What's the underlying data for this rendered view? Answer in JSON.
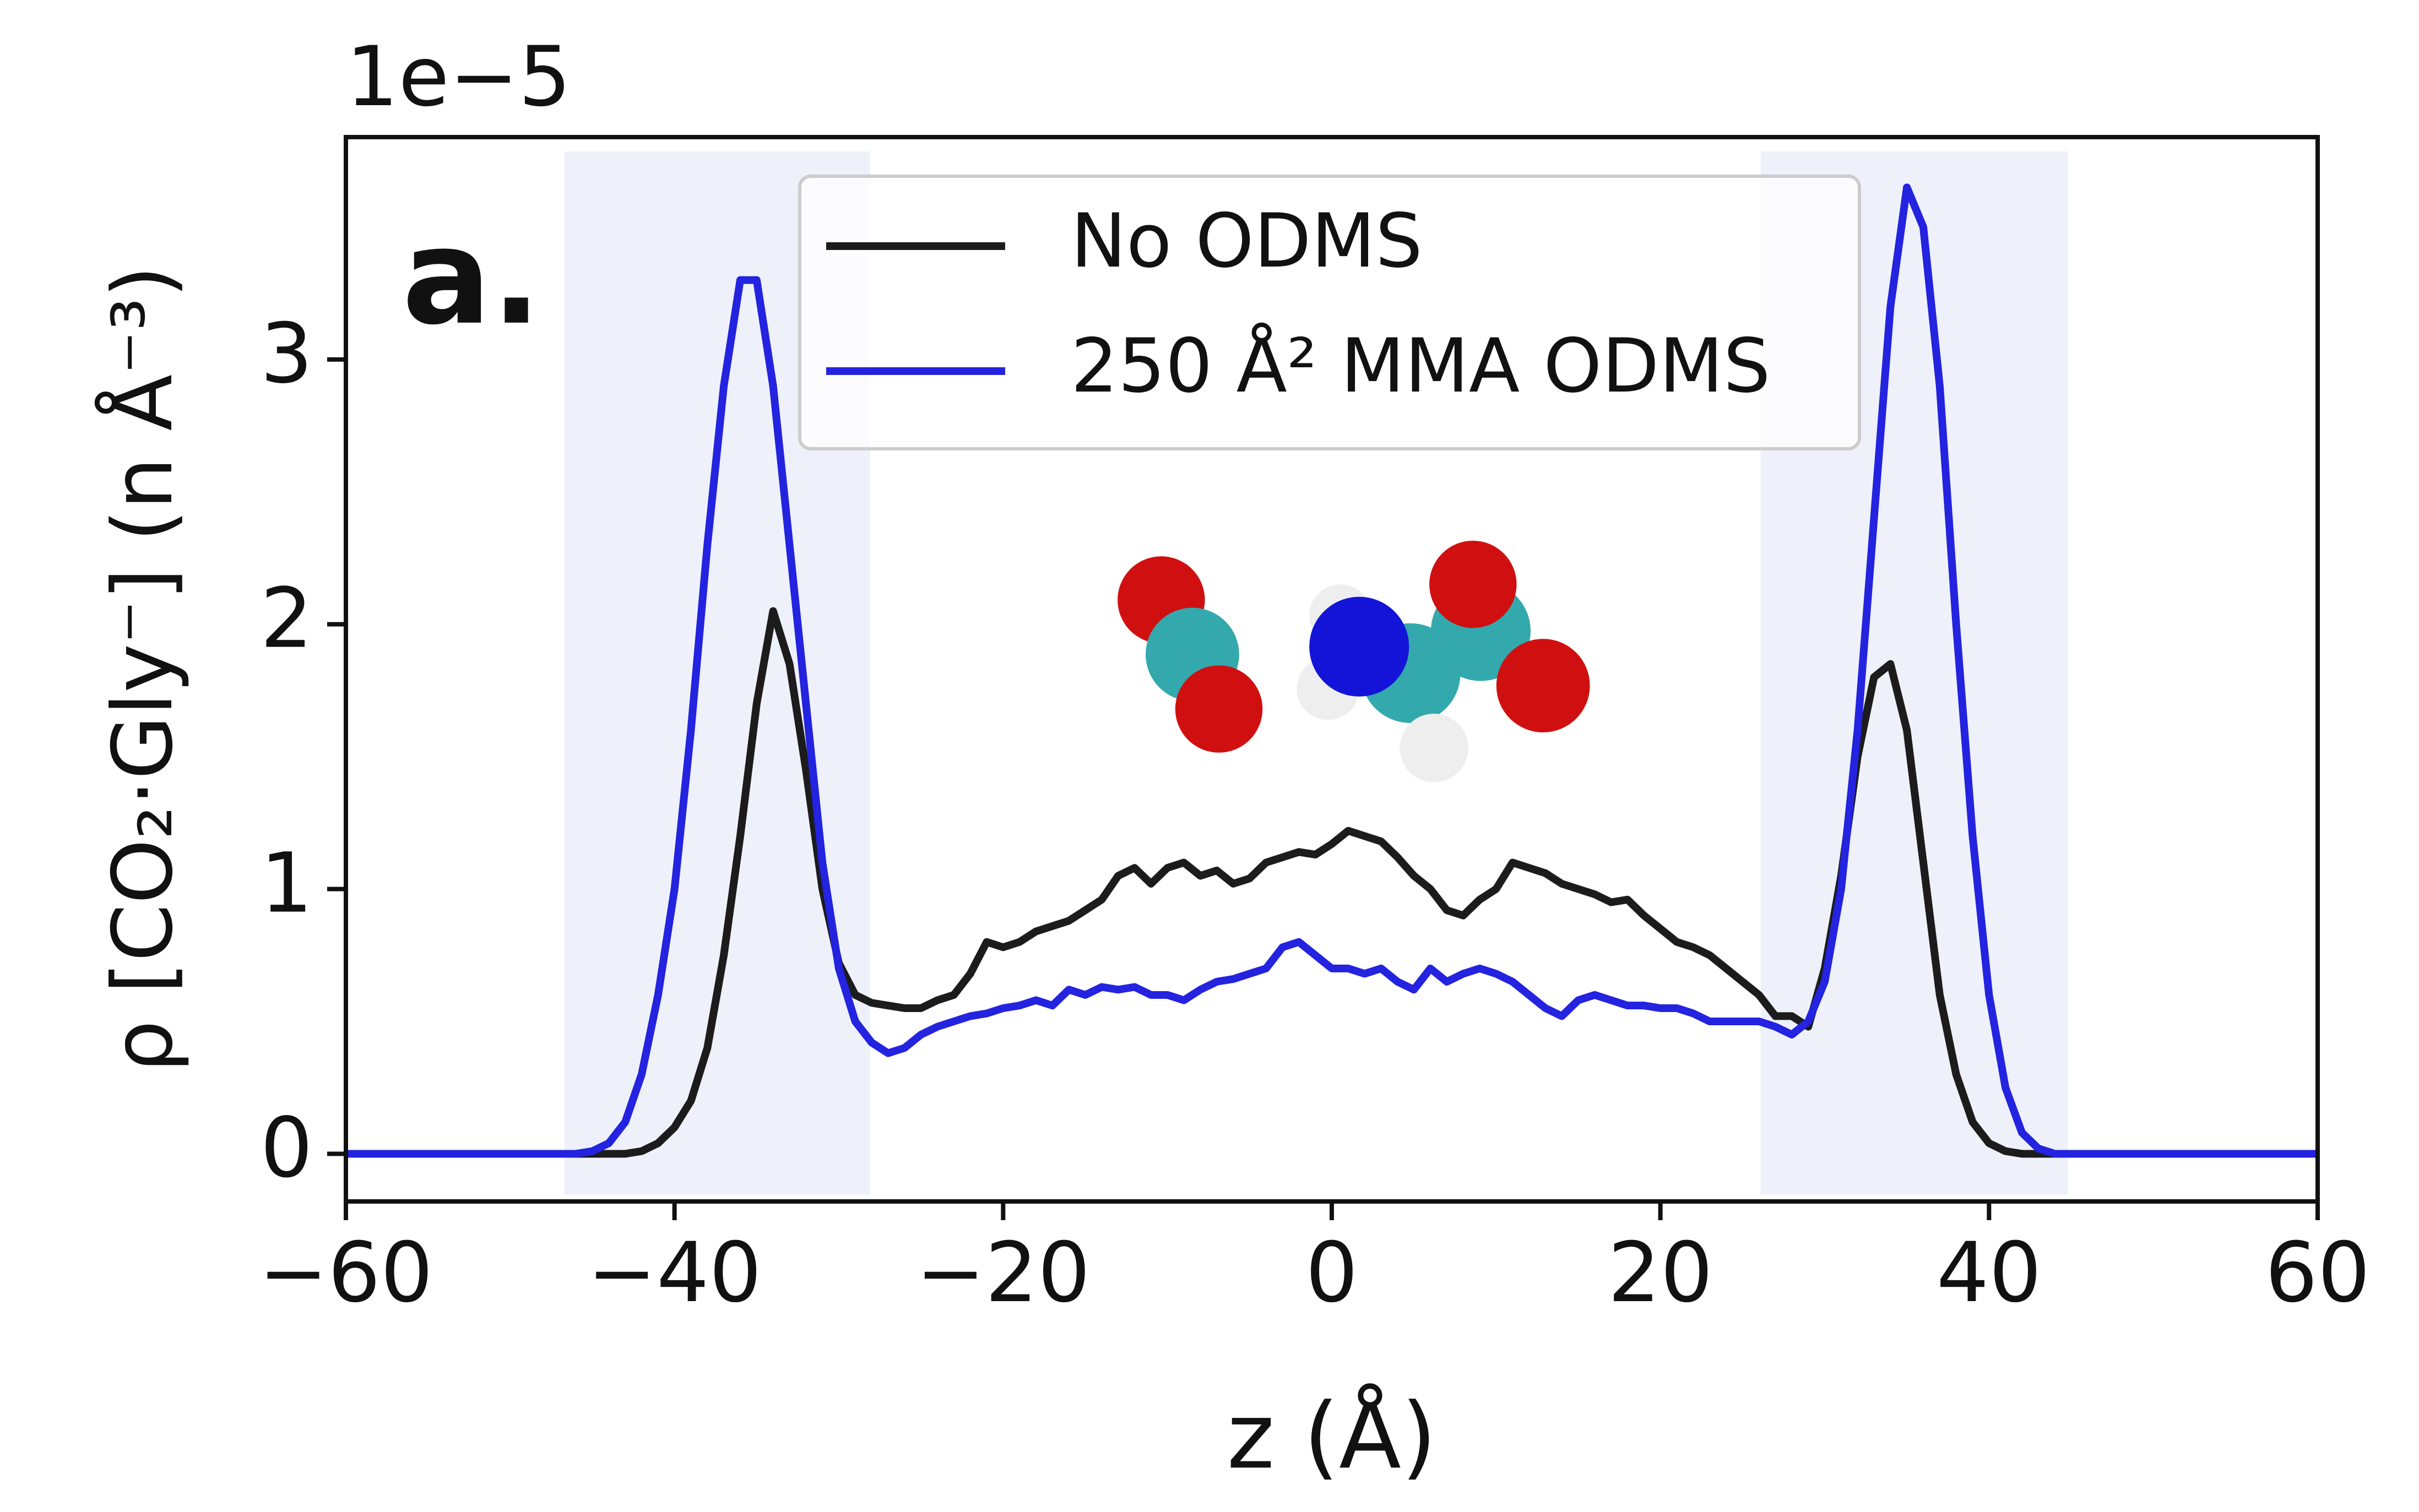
{
  "chart_data": {
    "type": "line",
    "offset_label": "1e−5",
    "panel_label": "a.",
    "x_label": "z (Å)",
    "y_label": "ρ [CO₂·Gly⁻] (n Å⁻³)",
    "x": [
      -60,
      -46,
      -45,
      -44,
      -43,
      -42,
      -41,
      -40,
      -39,
      -38,
      -37,
      -36,
      -35,
      -34,
      -33,
      -32,
      -31,
      -30,
      -29,
      -28,
      -27,
      -26,
      -25,
      -24,
      -23,
      -22,
      -21,
      -20,
      -19,
      -18,
      -17,
      -16,
      -15,
      -14,
      -13,
      -12,
      -11,
      -10,
      -9,
      -8,
      -7,
      -6,
      -5,
      -4,
      -3,
      -2,
      -1,
      0,
      1,
      2,
      3,
      4,
      5,
      6,
      7,
      8,
      9,
      10,
      11,
      12,
      13,
      14,
      15,
      16,
      17,
      18,
      19,
      20,
      21,
      22,
      23,
      24,
      25,
      26,
      27,
      28,
      29,
      30,
      31,
      32,
      33,
      34,
      35,
      36,
      37,
      38,
      39,
      40,
      41,
      42,
      43,
      44,
      45,
      46,
      60
    ],
    "series": [
      {
        "name": "No ODMS",
        "color": "#1c1c1c",
        "values": [
          0,
          0,
          0,
          0,
          0,
          0.01,
          0.04,
          0.1,
          0.2,
          0.4,
          0.75,
          1.2,
          1.7,
          2.05,
          1.85,
          1.45,
          1.0,
          0.72,
          0.6,
          0.57,
          0.56,
          0.55,
          0.55,
          0.58,
          0.6,
          0.68,
          0.8,
          0.78,
          0.8,
          0.84,
          0.86,
          0.88,
          0.92,
          0.96,
          1.05,
          1.08,
          1.02,
          1.08,
          1.1,
          1.05,
          1.07,
          1.02,
          1.04,
          1.1,
          1.12,
          1.14,
          1.13,
          1.17,
          1.22,
          1.2,
          1.18,
          1.12,
          1.05,
          1.0,
          0.92,
          0.9,
          0.96,
          1.0,
          1.1,
          1.08,
          1.06,
          1.02,
          1.0,
          0.98,
          0.95,
          0.96,
          0.9,
          0.85,
          0.8,
          0.78,
          0.75,
          0.7,
          0.65,
          0.6,
          0.52,
          0.52,
          0.48,
          0.7,
          1.05,
          1.5,
          1.8,
          1.85,
          1.6,
          1.1,
          0.6,
          0.3,
          0.12,
          0.04,
          0.01,
          0,
          0,
          0,
          0,
          0,
          0
        ]
      },
      {
        "name": "250 Å² MMA ODMS",
        "color": "#2323e0",
        "values": [
          0,
          0,
          0.01,
          0.04,
          0.12,
          0.3,
          0.6,
          1.0,
          1.6,
          2.3,
          2.9,
          3.3,
          3.3,
          2.9,
          2.3,
          1.7,
          1.1,
          0.7,
          0.5,
          0.42,
          0.38,
          0.4,
          0.45,
          0.48,
          0.5,
          0.52,
          0.53,
          0.55,
          0.56,
          0.58,
          0.56,
          0.62,
          0.6,
          0.63,
          0.62,
          0.63,
          0.6,
          0.6,
          0.58,
          0.62,
          0.65,
          0.66,
          0.68,
          0.7,
          0.78,
          0.8,
          0.75,
          0.7,
          0.7,
          0.68,
          0.7,
          0.65,
          0.62,
          0.7,
          0.65,
          0.68,
          0.7,
          0.68,
          0.65,
          0.6,
          0.55,
          0.52,
          0.58,
          0.6,
          0.58,
          0.56,
          0.56,
          0.55,
          0.55,
          0.53,
          0.5,
          0.5,
          0.5,
          0.5,
          0.48,
          0.45,
          0.5,
          0.65,
          1.0,
          1.6,
          2.4,
          3.2,
          3.65,
          3.5,
          2.9,
          2.0,
          1.2,
          0.6,
          0.25,
          0.08,
          0.02,
          0,
          0,
          0,
          0
        ]
      }
    ],
    "shaded_regions": [
      [
        -46.7,
        -28.1
      ],
      [
        26.1,
        44.8
      ]
    ],
    "shade_color": "#eef1f9",
    "xlim": [
      -60,
      60
    ],
    "ylim": [
      -0.18,
      3.84
    ],
    "xticks": [
      {
        "value": -60,
        "label": "−60"
      },
      {
        "value": -40,
        "label": "−40"
      },
      {
        "value": -20,
        "label": "−20"
      },
      0,
      20,
      40,
      60
    ],
    "yticks": [
      0,
      1,
      2,
      3
    ],
    "legend": "upper center"
  }
}
